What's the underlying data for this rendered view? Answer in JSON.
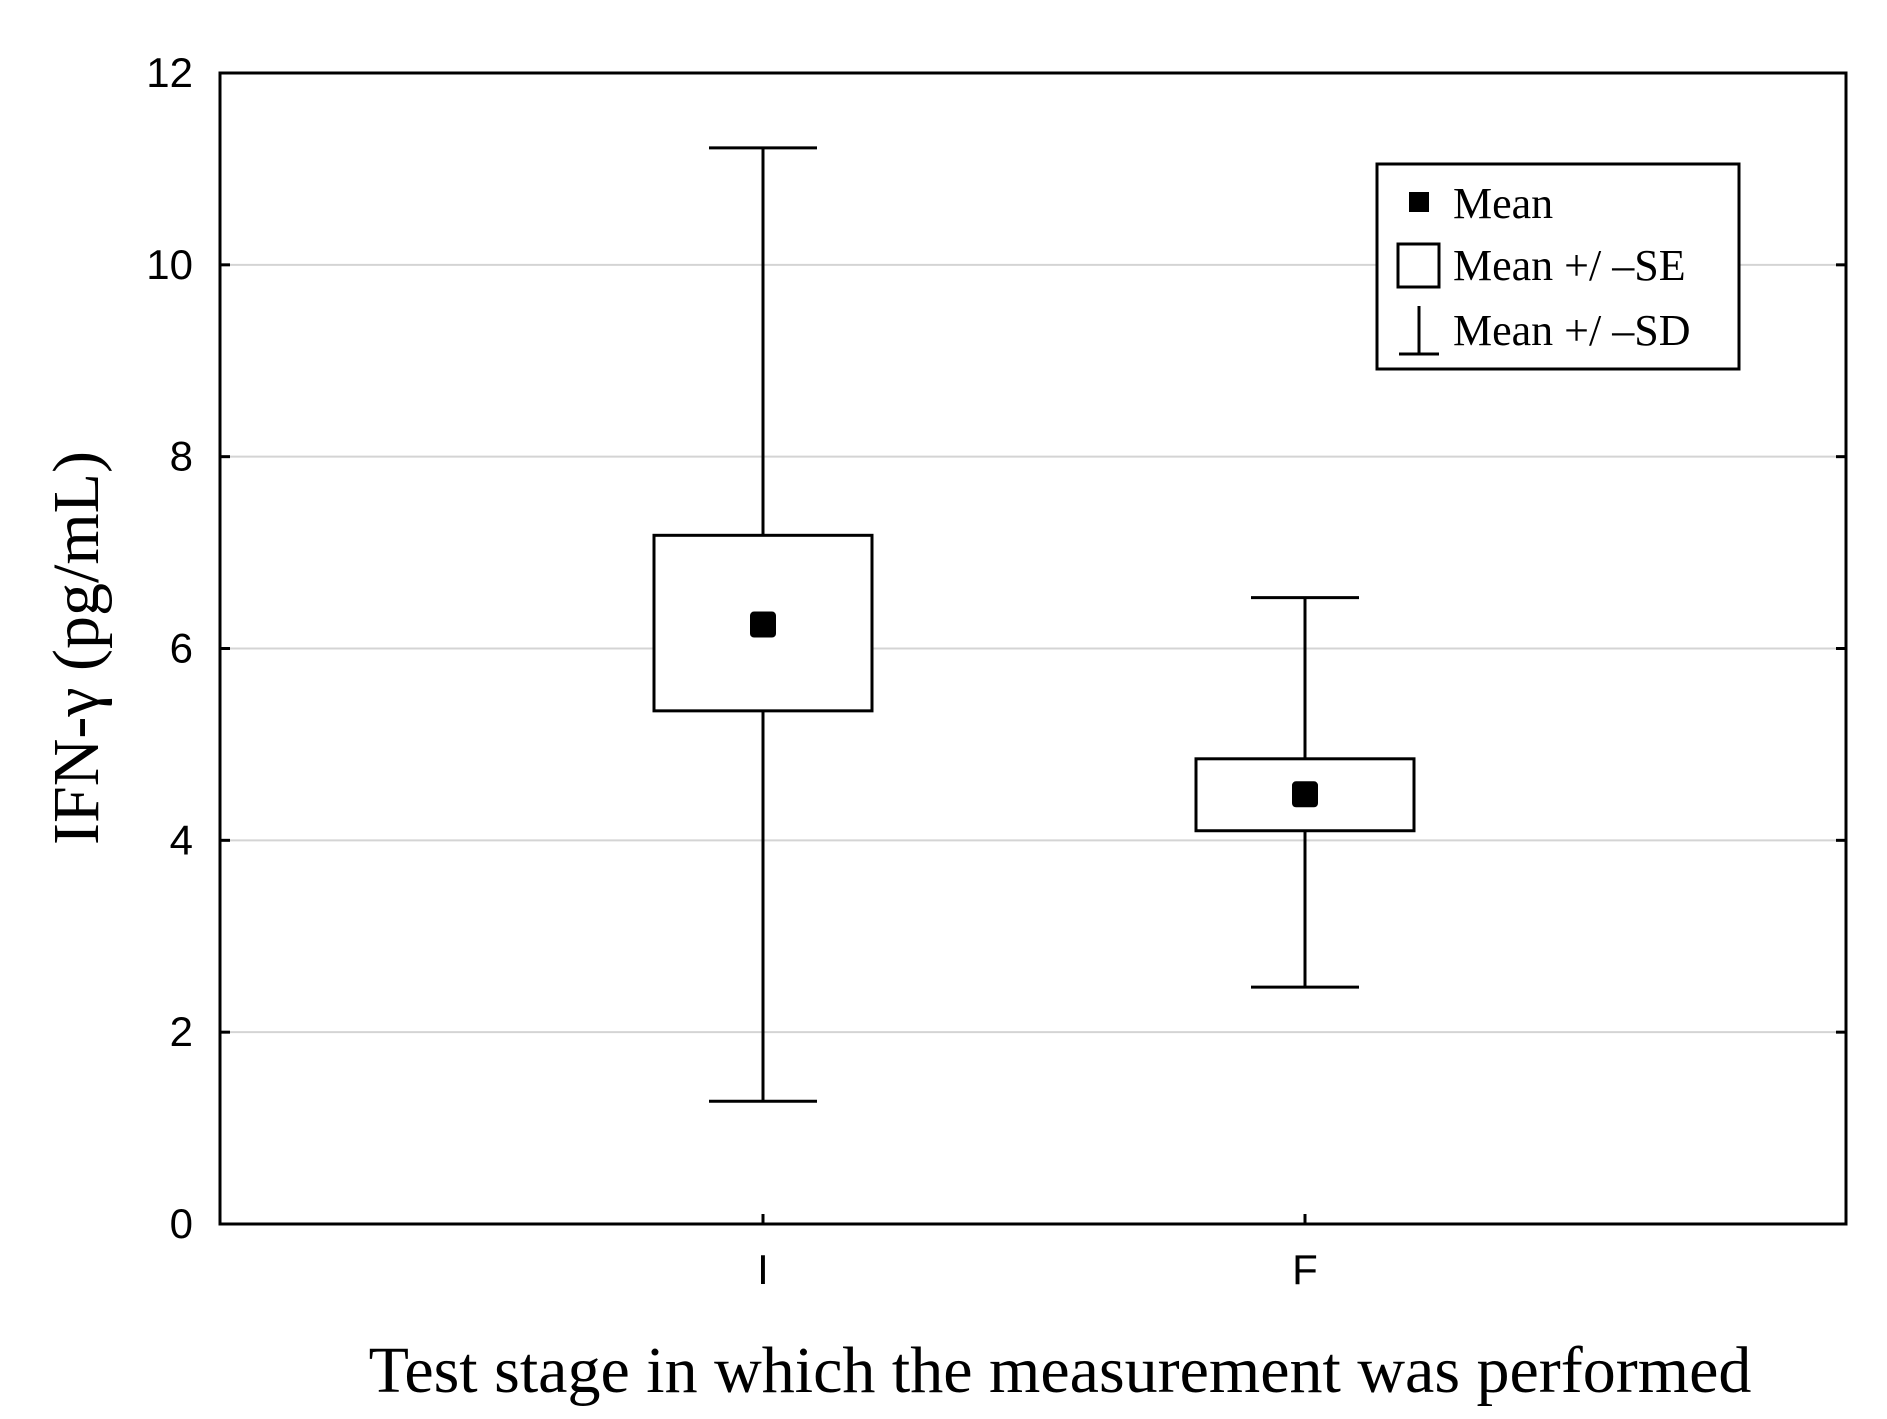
{
  "chart_data": {
    "type": "box",
    "categories": [
      "I",
      "F"
    ],
    "series": [
      {
        "category": "I",
        "mean": 6.25,
        "se_low": 5.35,
        "se_high": 7.18,
        "sd_low": 1.28,
        "sd_high": 11.22
      },
      {
        "category": "F",
        "mean": 4.48,
        "se_low": 4.1,
        "se_high": 4.85,
        "sd_low": 2.47,
        "sd_high": 6.53
      }
    ],
    "xlabel": "Test stage in which the measurement was performed",
    "ylabel": "IFN-γ (pg/mL)",
    "ylim": [
      0,
      12
    ],
    "yticks": [
      "0",
      "2",
      "4",
      "6",
      "8",
      "10",
      "12"
    ],
    "grid": true,
    "legend": {
      "position": "top-right",
      "entries": [
        "Mean",
        "Mean +/ –SE",
        "Mean +/ –SD"
      ]
    }
  }
}
